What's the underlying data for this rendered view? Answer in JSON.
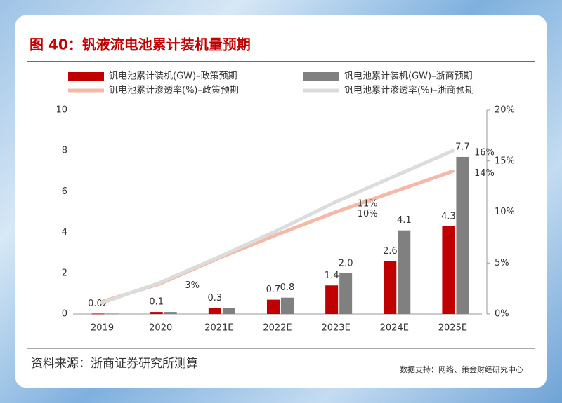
{
  "chart_data": {
    "type": "bar",
    "title": "图 40：钒液流电池累计装机量预期",
    "source": "资料来源：浙商证券研究所测算",
    "footer": "数据支持：网络、策金财经研究中心",
    "categories": [
      "2019",
      "2020",
      "2021E",
      "2022E",
      "2023E",
      "2024E",
      "2025E"
    ],
    "ylim": [
      0,
      10
    ],
    "yticks": [
      0,
      2,
      4,
      6,
      8,
      10
    ],
    "y2lim": [
      0,
      20
    ],
    "y2ticks": [
      {
        "value": 0,
        "label": "0%"
      },
      {
        "value": 5,
        "label": "5%"
      },
      {
        "value": 10,
        "label": "10%"
      },
      {
        "value": 15,
        "label": "15%"
      },
      {
        "value": 20,
        "label": "20%"
      }
    ],
    "series": [
      {
        "name": "钒电池累计装机(GW)–政策预期",
        "type": "bar",
        "color": "#c00000",
        "values": [
          0.02,
          0.1,
          0.3,
          0.7,
          1.4,
          2.6,
          4.3
        ],
        "value_labels": [
          "0.02",
          "0.1",
          "0.3",
          "0.7",
          "1.4",
          "2.6",
          "4.3"
        ]
      },
      {
        "name": "钒电池累计装机(GW)–浙商预期",
        "type": "bar",
        "color": "#808080",
        "values": [
          0.02,
          0.1,
          0.3,
          0.8,
          2.0,
          4.1,
          7.7
        ],
        "value_labels": [
          null,
          null,
          null,
          "0.8",
          "2.0",
          "4.1",
          "7.7"
        ]
      },
      {
        "name": "钒电池累计渗透率(%)–政策预期",
        "type": "line",
        "axis": "y2",
        "color": "#f4b9a8",
        "values": [
          1.2,
          3,
          5.5,
          7.8,
          10,
          12,
          14
        ],
        "value_labels": [
          null,
          "3%",
          null,
          null,
          "10%",
          null,
          "14%"
        ]
      },
      {
        "name": "钒电池累计渗透率(%)–浙商预期",
        "type": "line",
        "axis": "y2",
        "color": "#dcdcdc",
        "values": [
          1.1,
          3.1,
          5.6,
          8.2,
          11,
          13.5,
          16
        ],
        "value_labels": [
          null,
          null,
          null,
          null,
          "11%",
          null,
          "16%"
        ]
      }
    ]
  }
}
